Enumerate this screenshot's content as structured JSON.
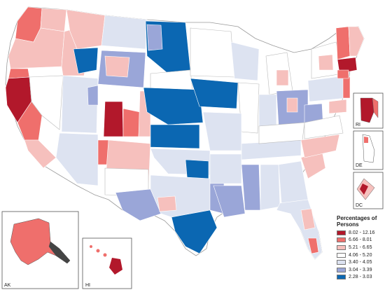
{
  "legend": {
    "title_line1": "Percentages of",
    "title_line2": "Persons",
    "items": [
      {
        "label": "8.02 - 12.16",
        "color": "#b2182b"
      },
      {
        "label": "6.66 - 8.01",
        "color": "#ef6f6c"
      },
      {
        "label": "5.21 - 6.65",
        "color": "#f6c0bd"
      },
      {
        "label": "4.06 - 5.20",
        "color": "#ffffff"
      },
      {
        "label": "3.40 - 4.05",
        "color": "#dde3f1"
      },
      {
        "label": "3.04 - 3.39",
        "color": "#9aa6d8"
      },
      {
        "label": "2.28 - 3.03",
        "color": "#0b67b2"
      }
    ]
  },
  "insets": {
    "ri": "RI",
    "de": "DE",
    "dc": "DC",
    "ak": "AK",
    "hi": "HI"
  }
}
